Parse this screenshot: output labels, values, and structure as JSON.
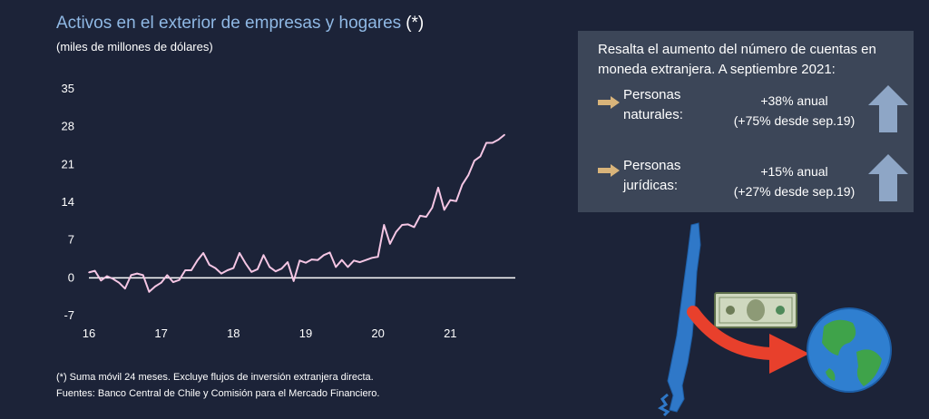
{
  "header": {
    "title": "Activos en el exterior de empresas y hogares",
    "title_mark": "(*)",
    "subtitle": "(miles de millones de dólares)"
  },
  "footnotes": {
    "note": "(*) Suma móvil 24 meses. Excluye flujos de inversión extranjera directa.",
    "sources": "Fuentes: Banco Central de Chile y Comisión para el Mercado Financiero."
  },
  "highlight_box": {
    "heading_line1": "Resalta el aumento del número de cuentas en",
    "heading_line2": "moneda extranjera. A septiembre 2021:",
    "rows": [
      {
        "label_line1": "Personas",
        "label_line2": "naturales:",
        "stat_line1": "+38% anual",
        "stat_line2": "(+75% desde sep.19)",
        "icon": "up-arrow-icon"
      },
      {
        "label_line1": "Personas",
        "label_line2": "jurídicas:",
        "stat_line1": "+15% anual",
        "stat_line2": "(+27% desde sep.19)",
        "icon": "up-arrow-icon"
      }
    ]
  },
  "illustration": {
    "icons": [
      "chile-map-icon",
      "dollar-bill-icon",
      "curved-arrow-icon",
      "globe-icon"
    ]
  },
  "colors": {
    "background": "#1c2338",
    "title": "#8fb8e4",
    "line": "#f5c6e4",
    "box": "#3c4658",
    "bullet_arrow": "#d9b47a",
    "up_arrow": "#8ea6c6",
    "curved_arrow": "#e8402c"
  },
  "chart_data": {
    "type": "line",
    "title": "Activos en el exterior de empresas y hogares",
    "ylabel": "(miles de millones de dólares)",
    "xlabel": "",
    "ylim": [
      -7,
      35
    ],
    "yticks": [
      -7,
      0,
      7,
      14,
      21,
      28,
      35
    ],
    "xlim": [
      16,
      21.9
    ],
    "xticks": [
      16,
      17,
      18,
      19,
      20,
      21
    ],
    "grid": false,
    "x": [
      16.0,
      16.0833,
      16.1667,
      16.25,
      16.3333,
      16.4167,
      16.5,
      16.5833,
      16.6667,
      16.75,
      16.8333,
      16.9167,
      17.0,
      17.0833,
      17.1667,
      17.25,
      17.3333,
      17.4167,
      17.5,
      17.5833,
      17.6667,
      17.75,
      17.8333,
      17.9167,
      18.0,
      18.0833,
      18.1667,
      18.25,
      18.3333,
      18.4167,
      18.5,
      18.5833,
      18.6667,
      18.75,
      18.8333,
      18.9167,
      19.0,
      19.0833,
      19.1667,
      19.25,
      19.3333,
      19.4167,
      19.5,
      19.5833,
      19.6667,
      19.75,
      19.8333,
      19.9167,
      20.0,
      20.0833,
      20.1667,
      20.25,
      20.3333,
      20.4167,
      20.5,
      20.5833,
      20.6667,
      20.75,
      20.8333,
      20.9167,
      21.0,
      21.0833,
      21.1667,
      21.25,
      21.3333,
      21.4167,
      21.5,
      21.5833,
      21.6667,
      21.75
    ],
    "series": [
      {
        "values": [
          1.0,
          1.3,
          -0.5,
          0.3,
          -0.2,
          -0.9,
          -2.0,
          0.5,
          0.8,
          0.5,
          -2.6,
          -1.6,
          -0.9,
          0.5,
          -0.8,
          -0.4,
          1.4,
          1.4,
          3.2,
          4.6,
          2.4,
          1.8,
          0.8,
          1.4,
          1.8,
          4.6,
          2.7,
          1.1,
          1.6,
          4.2,
          2.0,
          1.2,
          1.7,
          2.9,
          -0.6,
          3.2,
          2.8,
          3.4,
          3.3,
          4.2,
          4.7,
          2.0,
          3.3,
          2.0,
          3.2,
          2.9,
          3.3,
          3.7,
          3.9,
          9.8,
          6.3,
          8.5,
          9.8,
          9.9,
          9.4,
          11.5,
          11.3,
          13.0,
          16.7,
          12.6,
          14.4,
          14.2,
          17.3,
          19.0,
          21.7,
          22.5,
          25.0,
          25.0,
          25.6,
          26.5
        ]
      }
    ]
  }
}
